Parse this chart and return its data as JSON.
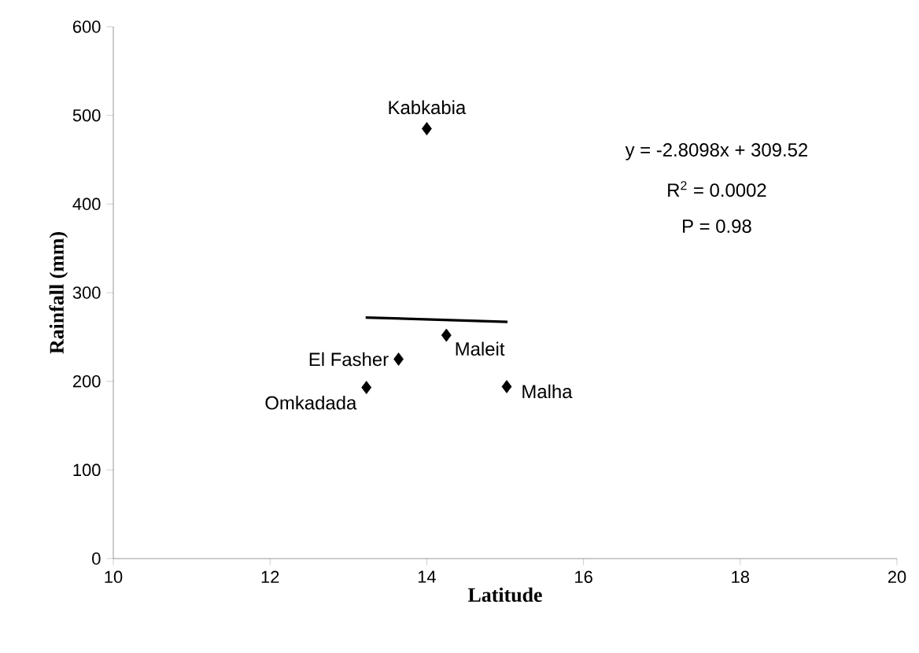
{
  "chart_data": {
    "type": "scatter",
    "xlabel": "Latitude",
    "ylabel": "Rainfall (mm)",
    "xlim": [
      10,
      20
    ],
    "xticks": [
      10,
      12,
      14,
      16,
      18,
      20
    ],
    "ylim": [
      0,
      600
    ],
    "yticks": [
      0,
      100,
      200,
      300,
      400,
      500,
      600
    ],
    "grid": false,
    "series": [
      {
        "marker": "diamond",
        "color": "#000000",
        "x": [
          14.0,
          14.25,
          13.64,
          13.23,
          15.02
        ],
        "values": [
          485,
          252,
          225,
          193,
          194
        ]
      },
      {
        "type": "line",
        "marker": "none",
        "color": "#000000",
        "x": [
          13.22,
          15.03
        ],
        "values": [
          272,
          267
        ]
      }
    ],
    "annotations": [
      {
        "text": "Kabkabia",
        "x": 14.0,
        "y": 485
      },
      {
        "text": "Maleit",
        "x": 14.25,
        "y": 252
      },
      {
        "text": "El Fasher",
        "x": 13.64,
        "y": 225
      },
      {
        "text": "Omkadada",
        "x": 13.23,
        "y": 193
      },
      {
        "text": "Malha",
        "x": 15.02,
        "y": 194
      },
      "y = -2.8098x + 309.52",
      "R$^{2}$ = 0.0002",
      "P = 0.98"
    ]
  }
}
